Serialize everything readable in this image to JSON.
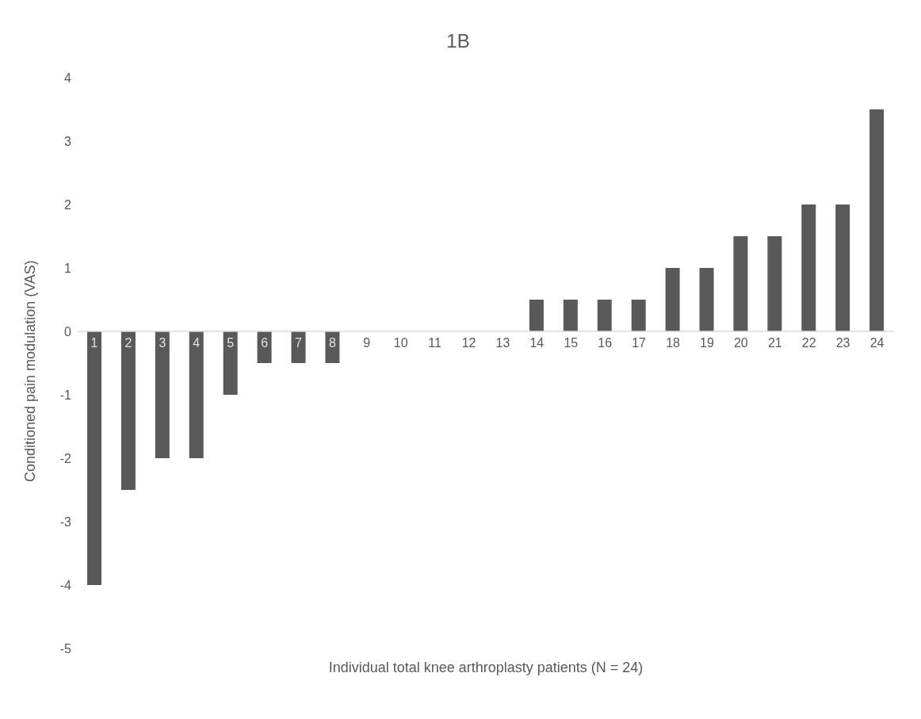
{
  "chart_data": {
    "type": "bar",
    "title": "1B",
    "xlabel": "Individual total knee arthroplasty patients (N = 24)",
    "ylabel": "Conditioned pain modulation (VAS)",
    "categories": [
      "1",
      "2",
      "3",
      "4",
      "5",
      "6",
      "7",
      "8",
      "9",
      "10",
      "11",
      "12",
      "13",
      "14",
      "15",
      "16",
      "17",
      "18",
      "19",
      "20",
      "21",
      "22",
      "23",
      "24"
    ],
    "values": [
      -4,
      -2.5,
      -2,
      -2,
      -1,
      -0.5,
      -0.5,
      -0.5,
      0,
      0,
      0,
      0,
      0,
      0.5,
      0.5,
      0.5,
      0.5,
      1,
      1,
      1.5,
      1.5,
      2,
      2,
      3.5
    ],
    "color": "#595959",
    "ylim": [
      -5,
      4
    ],
    "yticks": [
      -5,
      -4,
      -3,
      -2,
      -1,
      0,
      1,
      2,
      3,
      4
    ],
    "grid": false,
    "legend": false
  }
}
